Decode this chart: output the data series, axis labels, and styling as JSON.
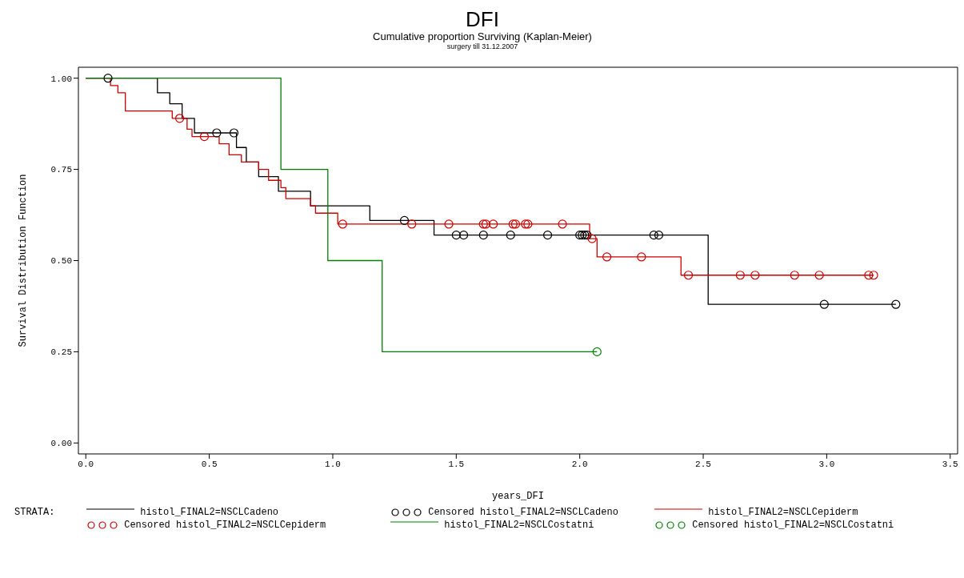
{
  "chart_data": {
    "type": "step",
    "title": "DFI",
    "subtitle": "Cumulative proportion Surviving (Kaplan-Meier)",
    "annotations": [
      "surgery till 31.12.2007"
    ],
    "xlabel": "years_DFI",
    "ylabel": "Survival Distribution Function",
    "legend_title": "STRATA:",
    "legend": "bottom",
    "grid": false,
    "marker": "none",
    "xlim": [
      -0.03,
      3.53
    ],
    "xticks": [
      {
        "value": 0,
        "label": "0.0"
      },
      {
        "value": 0.5,
        "label": "0.5"
      },
      {
        "value": 1,
        "label": "1.0"
      },
      {
        "value": 1.5,
        "label": "1.5"
      },
      {
        "value": 2,
        "label": "2.0"
      },
      {
        "value": 2.5,
        "label": "2.5"
      },
      {
        "value": 3,
        "label": "3.0"
      },
      {
        "value": 3.5,
        "label": "3.5"
      }
    ],
    "ylim": [
      -0.03,
      1.03
    ],
    "yticks": [
      {
        "value": 0,
        "label": "0.00"
      },
      {
        "value": 0.25,
        "label": "0.25"
      },
      {
        "value": 0.5,
        "label": "0.50"
      },
      {
        "value": 0.75,
        "label": "0.75"
      },
      {
        "value": 1,
        "label": "1.00"
      }
    ],
    "series": [
      {
        "name": "histol_FINAL2=NSCLCadeno",
        "color": "#000000",
        "x": [
          0,
          0.29,
          0.34,
          0.39,
          0.44,
          0.61,
          0.65,
          0.7,
          0.78,
          0.91,
          1.15,
          1.41,
          2.52,
          3.28
        ],
        "values": [
          1,
          0.96,
          0.93,
          0.89,
          0.85,
          0.81,
          0.77,
          0.73,
          0.69,
          0.65,
          0.61,
          0.57,
          0.38,
          0.38
        ]
      },
      {
        "name": "Censored histol_FINAL2=NSCLCadeno",
        "color": "#000000",
        "type": "scatter",
        "marker": "circle",
        "x": [
          0.09,
          0.53,
          0.6,
          1.29,
          1.5,
          1.53,
          1.61,
          1.72,
          1.87,
          2.0,
          2.01,
          2.02,
          2.03,
          2.3,
          2.32,
          2.99,
          3.28
        ],
        "values": [
          1,
          0.85,
          0.85,
          0.61,
          0.57,
          0.57,
          0.57,
          0.57,
          0.57,
          0.57,
          0.57,
          0.57,
          0.57,
          0.57,
          0.57,
          0.38,
          0.38
        ]
      },
      {
        "name": "histol_FINAL2=NSCLCepiderm",
        "color": "#cc0000",
        "x": [
          0,
          0.1,
          0.13,
          0.16,
          0.35,
          0.41,
          0.43,
          0.54,
          0.58,
          0.63,
          0.7,
          0.74,
          0.79,
          0.81,
          0.91,
          0.93,
          1.02,
          2.04,
          2.07,
          2.41,
          3.19
        ],
        "values": [
          1,
          0.98,
          0.96,
          0.91,
          0.89,
          0.86,
          0.84,
          0.82,
          0.79,
          0.77,
          0.75,
          0.72,
          0.7,
          0.67,
          0.65,
          0.63,
          0.6,
          0.56,
          0.51,
          0.46,
          0.46
        ]
      },
      {
        "name": "Censored histol_FINAL2=NSCLCepiderm",
        "color": "#cc0000",
        "type": "scatter",
        "marker": "circle",
        "x": [
          0.38,
          0.48,
          1.04,
          1.32,
          1.47,
          1.61,
          1.62,
          1.65,
          1.73,
          1.74,
          1.78,
          1.79,
          1.93,
          2.05,
          2.11,
          2.25,
          2.44,
          2.65,
          2.71,
          2.87,
          2.97,
          3.17,
          3.19
        ],
        "values": [
          0.89,
          0.84,
          0.6,
          0.6,
          0.6,
          0.6,
          0.6,
          0.6,
          0.6,
          0.6,
          0.6,
          0.6,
          0.6,
          0.56,
          0.51,
          0.51,
          0.46,
          0.46,
          0.46,
          0.46,
          0.46,
          0.46,
          0.46
        ]
      },
      {
        "name": "histol_FINAL2=NSCLCostatni",
        "color": "#008000",
        "x": [
          0,
          0.79,
          0.98,
          1.2,
          2.07
        ],
        "values": [
          1,
          0.75,
          0.5,
          0.25,
          0.25
        ]
      },
      {
        "name": "Censored histol_FINAL2=NSCLCostatni",
        "color": "#008000",
        "type": "scatter",
        "marker": "circle",
        "x": [
          2.07
        ],
        "values": [
          0.25
        ]
      }
    ]
  }
}
